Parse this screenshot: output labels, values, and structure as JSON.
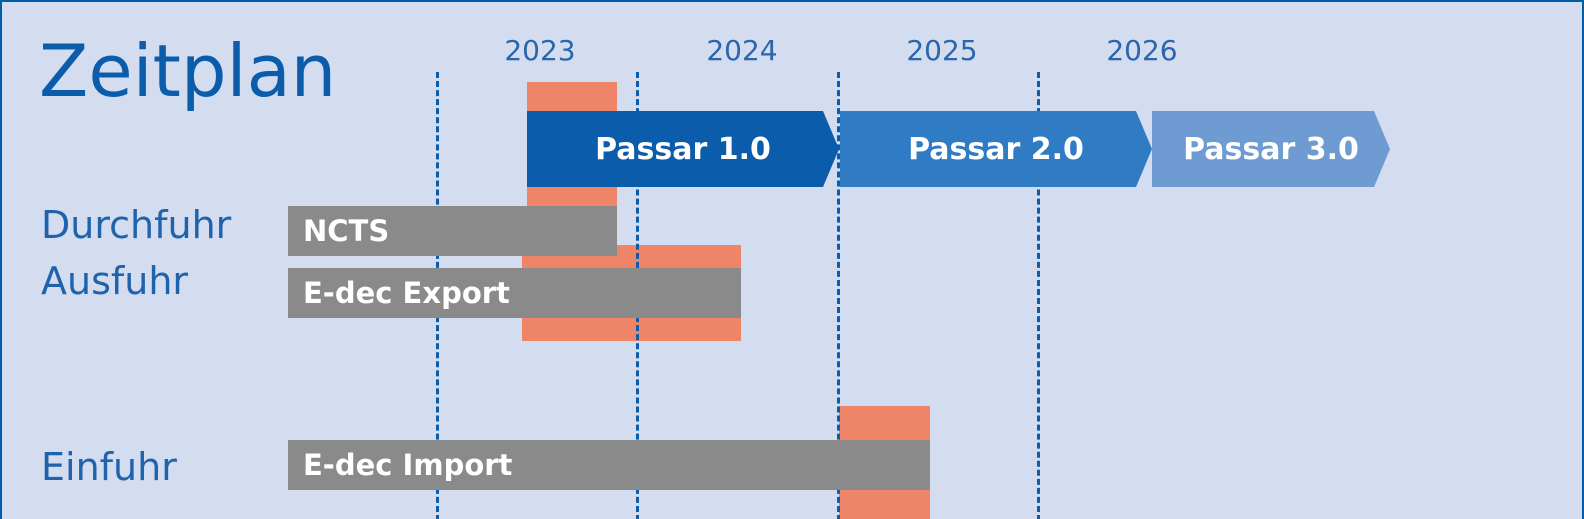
{
  "title": "Zeitplan",
  "years": [
    "2023",
    "2024",
    "2025",
    "2026"
  ],
  "phases": [
    {
      "label": "Passar 1.0",
      "color": "#0b5cab"
    },
    {
      "label": "Passar 2.0",
      "color": "#2f7cc4"
    },
    {
      "label": "Passar 3.0",
      "color": "#6f9bd3"
    }
  ],
  "rows": [
    {
      "label": "Durchfuhr",
      "system": "NCTS"
    },
    {
      "label": "Ausfuhr",
      "system": "E-dec Export"
    },
    {
      "label": "Einfuhr",
      "system": "E-dec Import"
    }
  ],
  "colors": {
    "background": "#d4dcf0",
    "border": "#005ba8",
    "accent_blue": "#0b5cab",
    "legacy_bar": "#8a8a8a",
    "transition_bar": "#ee8569"
  }
}
